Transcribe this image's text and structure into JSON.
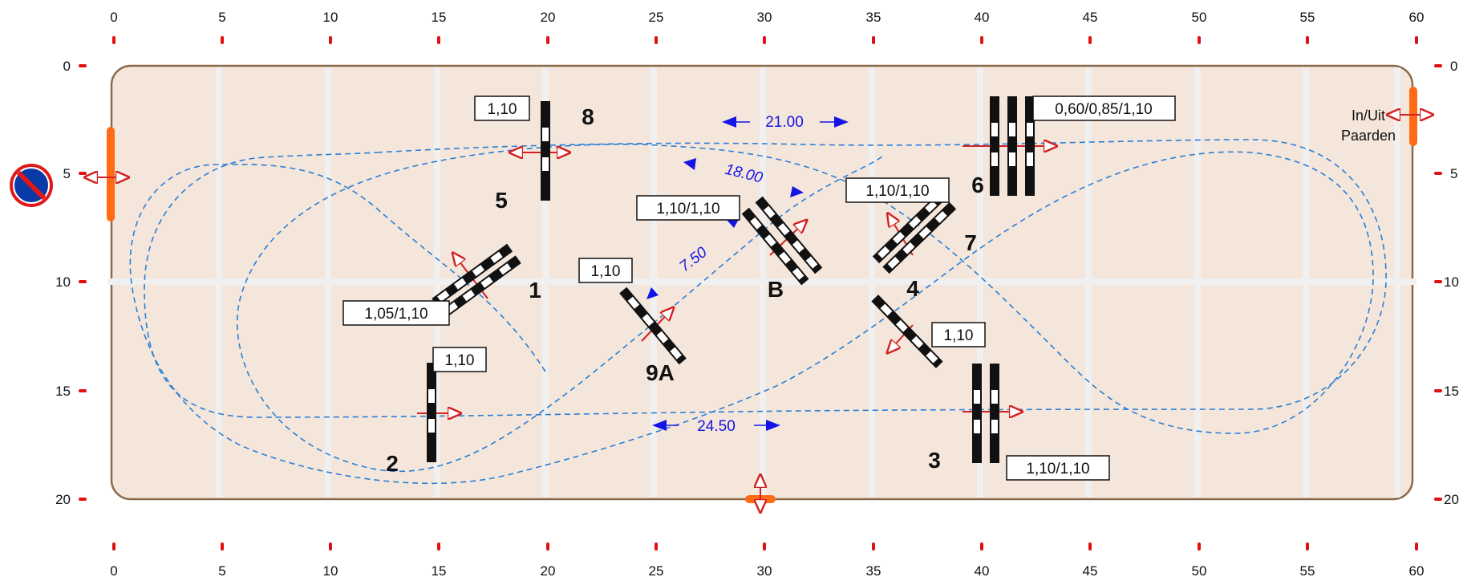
{
  "colors": {
    "arena_fill": "#f5e6dc",
    "arena_border": "#8a6a4a",
    "grid_line": "#f0f0f0",
    "route": "#2a7fd4",
    "distance": "#1414e6",
    "direction_arrow": "#d42020",
    "gate": "#ff6a14",
    "tick_mark": "#e01010"
  },
  "axis": {
    "x_ticks": [
      "0",
      "5",
      "10",
      "15",
      "20",
      "25",
      "30",
      "35",
      "40",
      "45",
      "50",
      "55",
      "60"
    ],
    "y_ticks": [
      "0",
      "5",
      "10",
      "15",
      "20"
    ]
  },
  "gates": {
    "in_out_label_line1": "In/Uit",
    "in_out_label_line2": "Paarden",
    "no_parking_icon": "no-parking-icon"
  },
  "obstacles": [
    {
      "number": "1",
      "height": "1,05/1,10"
    },
    {
      "number": "2",
      "height": "1,10"
    },
    {
      "number": "3",
      "height": "1,10/1,10"
    },
    {
      "number": "4",
      "height": "1,10"
    },
    {
      "number": "5",
      "height": "1,10"
    },
    {
      "number": "6",
      "height": "0,60/0,85/1,10"
    },
    {
      "number": "7",
      "height": "1,10/1,10"
    },
    {
      "number": "8"
    },
    {
      "number": "9A",
      "height": "1,10"
    },
    {
      "number": "B",
      "height": "1,10/1,10"
    }
  ],
  "distances": [
    "21.00",
    "18.00",
    "7.50",
    "24.50"
  ]
}
